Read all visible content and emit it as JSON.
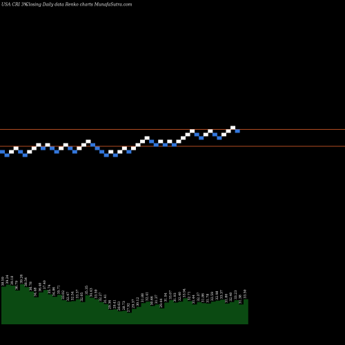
{
  "header": {
    "symbol": "USA CRI 3%",
    "caption": "Closing Daily data  Renko  charts MunafaSutra.com"
  },
  "colors": {
    "background": "#000000",
    "brick_up": "#ffffff",
    "brick_down": "#3377dd",
    "reference_line": "#b34d22",
    "volume_fill": "#0b4a12",
    "label_text": "#ffffff"
  },
  "chart_data": {
    "type": "renko",
    "price_range": [
      0,
      100
    ],
    "reference_levels": [
      62.5,
      57.6
    ],
    "bricks": [
      {
        "level": 56.0,
        "dir": "down"
      },
      {
        "level": 55.0,
        "dir": "down"
      },
      {
        "level": 56.0,
        "dir": "up"
      },
      {
        "level": 57.0,
        "dir": "up"
      },
      {
        "level": 56.0,
        "dir": "down"
      },
      {
        "level": 55.0,
        "dir": "down"
      },
      {
        "level": 56.0,
        "dir": "up"
      },
      {
        "level": 57.0,
        "dir": "up"
      },
      {
        "level": 58.0,
        "dir": "up"
      },
      {
        "level": 57.0,
        "dir": "down"
      },
      {
        "level": 58.0,
        "dir": "up"
      },
      {
        "level": 57.0,
        "dir": "down"
      },
      {
        "level": 56.0,
        "dir": "down"
      },
      {
        "level": 57.0,
        "dir": "up"
      },
      {
        "level": 58.0,
        "dir": "up"
      },
      {
        "level": 57.0,
        "dir": "down"
      },
      {
        "level": 56.0,
        "dir": "down"
      },
      {
        "level": 57.0,
        "dir": "up"
      },
      {
        "level": 58.0,
        "dir": "up"
      },
      {
        "level": 59.0,
        "dir": "up"
      },
      {
        "level": 58.0,
        "dir": "down"
      },
      {
        "level": 57.0,
        "dir": "down"
      },
      {
        "level": 56.0,
        "dir": "down"
      },
      {
        "level": 55.0,
        "dir": "down"
      },
      {
        "level": 56.0,
        "dir": "up"
      },
      {
        "level": 55.0,
        "dir": "down"
      },
      {
        "level": 56.0,
        "dir": "up"
      },
      {
        "level": 57.0,
        "dir": "up"
      },
      {
        "level": 56.0,
        "dir": "down"
      },
      {
        "level": 57.0,
        "dir": "up"
      },
      {
        "level": 58.0,
        "dir": "up"
      },
      {
        "level": 59.0,
        "dir": "up"
      },
      {
        "level": 60.0,
        "dir": "up"
      },
      {
        "level": 59.0,
        "dir": "down"
      },
      {
        "level": 58.0,
        "dir": "down"
      },
      {
        "level": 59.0,
        "dir": "up"
      },
      {
        "level": 58.0,
        "dir": "down"
      },
      {
        "level": 59.0,
        "dir": "up"
      },
      {
        "level": 58.0,
        "dir": "down"
      },
      {
        "level": 59.0,
        "dir": "up"
      },
      {
        "level": 60.0,
        "dir": "up"
      },
      {
        "level": 61.0,
        "dir": "up"
      },
      {
        "level": 62.0,
        "dir": "up"
      },
      {
        "level": 61.0,
        "dir": "down"
      },
      {
        "level": 60.0,
        "dir": "down"
      },
      {
        "level": 61.0,
        "dir": "up"
      },
      {
        "level": 62.0,
        "dir": "up"
      },
      {
        "level": 61.0,
        "dir": "down"
      },
      {
        "level": 60.0,
        "dir": "down"
      },
      {
        "level": 61.0,
        "dir": "up"
      },
      {
        "level": 62.0,
        "dir": "up"
      },
      {
        "level": 63.0,
        "dir": "up"
      },
      {
        "level": 62.0,
        "dir": "down"
      }
    ],
    "volume_labels": [
      "38.59",
      "39.24",
      "39.18",
      "36.79",
      "39.26",
      "38.54",
      "36.78",
      "34.48",
      "36.40",
      "37.40",
      "35.74",
      "34.86",
      "35.71",
      "33.02",
      "32.47",
      "32.54",
      "33.37",
      "32.05",
      "35.35",
      "34.43",
      "33.59",
      "32.27",
      "31.41",
      "29.36",
      "29.41",
      "28.63",
      "28.73",
      "27.92",
      "29.37",
      "30.12",
      "31.88",
      "32.41",
      "30.66",
      "31.37",
      "29.44",
      "31.94",
      "33.07",
      "31.93",
      "32.40",
      "33.94",
      "32.71",
      "31.44",
      "32.37",
      "31.86",
      "31.78",
      "32.59",
      "32.98",
      "33.37",
      "31.80",
      "32.40",
      "33.23",
      "31.38",
      "33.50"
    ],
    "volume_levels": [
      0.78,
      0.82,
      0.8,
      0.7,
      0.83,
      0.77,
      0.68,
      0.56,
      0.66,
      0.71,
      0.62,
      0.57,
      0.61,
      0.5,
      0.47,
      0.48,
      0.52,
      0.46,
      0.6,
      0.55,
      0.52,
      0.46,
      0.42,
      0.3,
      0.31,
      0.27,
      0.28,
      0.24,
      0.32,
      0.36,
      0.44,
      0.47,
      0.38,
      0.41,
      0.33,
      0.45,
      0.5,
      0.45,
      0.47,
      0.54,
      0.48,
      0.41,
      0.46,
      0.44,
      0.43,
      0.47,
      0.49,
      0.51,
      0.43,
      0.46,
      0.5,
      0.41,
      0.52
    ]
  }
}
